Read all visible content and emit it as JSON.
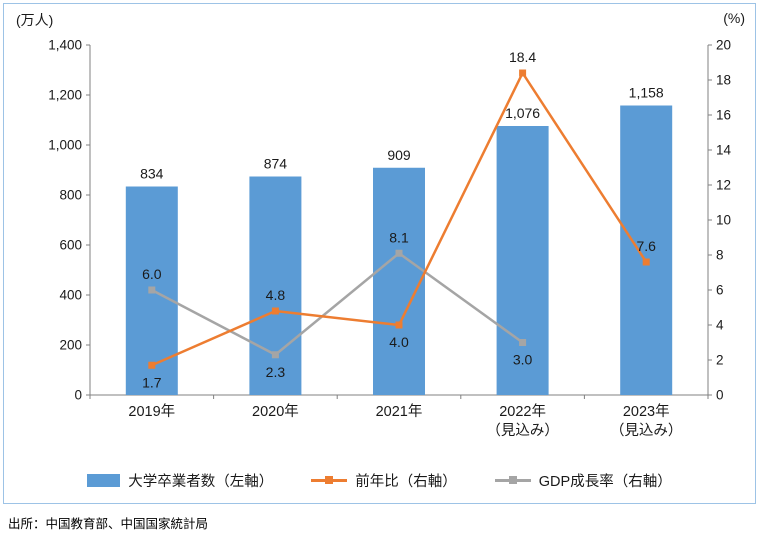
{
  "source": {
    "text": "出所：中国教育部、中国国家統計局"
  },
  "chart_data": {
    "type": "bar",
    "combo": "bar+line",
    "title": "",
    "categories": [
      [
        "2019年"
      ],
      [
        "2020年"
      ],
      [
        "2021年"
      ],
      [
        "2022年",
        "（見込み）"
      ],
      [
        "2023年",
        "（見込み）"
      ]
    ],
    "left_axis": {
      "label": "(万人)",
      "min": 0,
      "max": 1400,
      "step": 200,
      "ticks": [
        "1,400",
        "1,200",
        "1,000",
        "800",
        "600",
        "400",
        "200",
        "0"
      ]
    },
    "right_axis": {
      "label": "(%)",
      "min": 0,
      "max": 20,
      "step": 2,
      "ticks": [
        "20",
        "18",
        "16",
        "14",
        "12",
        "10",
        "8",
        "6",
        "4",
        "2",
        "0"
      ]
    },
    "series": [
      {
        "name": "大学卒業者数（左軸）",
        "type": "bar",
        "axis": "left",
        "color": "#5B9BD5",
        "values": [
          834,
          874,
          909,
          1076,
          1158
        ],
        "labels": [
          "834",
          "874",
          "909",
          "1,076",
          "1,158"
        ]
      },
      {
        "name": "前年比（右軸）",
        "type": "line",
        "axis": "right",
        "color": "#ED7D31",
        "values": [
          1.7,
          4.8,
          4.0,
          18.4,
          7.6
        ],
        "labels": [
          "1.7",
          "4.8",
          "4.0",
          "18.4",
          "7.6"
        ],
        "label_pos": [
          "below",
          "above",
          "below",
          "above",
          "above"
        ]
      },
      {
        "name": "GDP成長率（右軸）",
        "type": "line",
        "axis": "right",
        "color": "#A5A5A5",
        "values": [
          6.0,
          2.3,
          8.1,
          3.0,
          null
        ],
        "labels": [
          "6.0",
          "2.3",
          "8.1",
          "3.0",
          ""
        ],
        "label_pos": [
          "above",
          "below",
          "above",
          "below",
          ""
        ]
      }
    ],
    "legend_position": "bottom",
    "grid": false
  }
}
